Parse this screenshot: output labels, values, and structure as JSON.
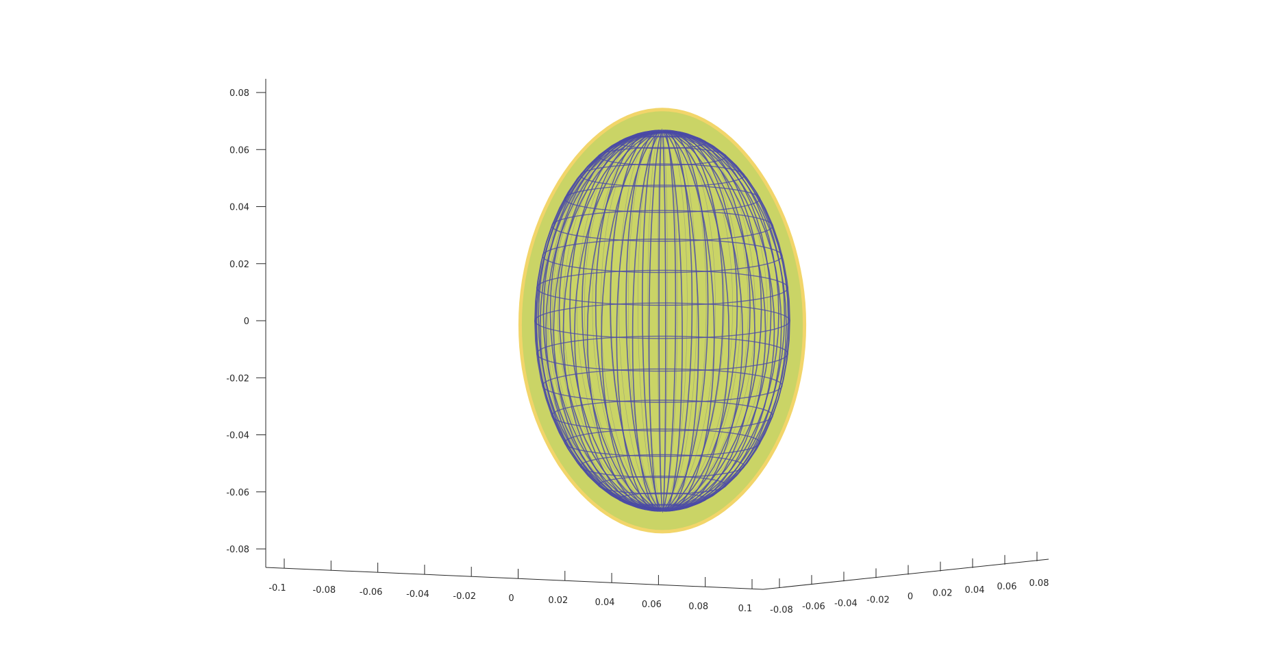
{
  "chart_data": {
    "type": "surface3d",
    "title": "",
    "xlabel": "",
    "ylabel": "",
    "zlabel": "",
    "grid": false,
    "legend": "none",
    "x_ticks": [
      "-0.1",
      "-0.08",
      "-0.06",
      "-0.04",
      "-0.02",
      "0",
      "0.02",
      "0.04",
      "0.06",
      "0.08",
      "0.1"
    ],
    "x_tick_values": [
      -0.1,
      -0.08,
      -0.06,
      -0.04,
      -0.02,
      0,
      0.02,
      0.04,
      0.06,
      0.08,
      0.1
    ],
    "y_ticks": [
      "-0.08",
      "-0.06",
      "-0.04",
      "-0.02",
      "0",
      "0.02",
      "0.04",
      "0.06",
      "0.08"
    ],
    "y_tick_values": [
      -0.08,
      -0.06,
      -0.04,
      -0.02,
      0,
      0.02,
      0.04,
      0.06,
      0.08
    ],
    "z_ticks": [
      "-0.08",
      "-0.06",
      "-0.04",
      "-0.02",
      "0",
      "0.02",
      "0.04",
      "0.06",
      "0.08"
    ],
    "z_tick_values": [
      -0.08,
      -0.06,
      -0.04,
      -0.02,
      0,
      0.02,
      0.04,
      0.06,
      0.08
    ],
    "xlim": [
      -0.1,
      0.1
    ],
    "ylim": [
      -0.08,
      0.08
    ],
    "zlim": [
      -0.08,
      0.08
    ],
    "surfaces": [
      {
        "role": "outer-ellipsoid",
        "center": [
          0,
          0,
          0
        ],
        "semi_axes": [
          0.058,
          0.058,
          0.074
        ],
        "face_color": "#c4cf55",
        "edge_color": "#f2d56a",
        "opacity": 0.9
      },
      {
        "role": "inner-wireframe",
        "center": [
          0,
          0,
          0
        ],
        "semi_axes": [
          0.052,
          0.052,
          0.067
        ],
        "line_color": "#4b4ba6",
        "meridians": 24,
        "parallels": 18
      }
    ],
    "colors": {
      "axis": "#262626",
      "outer_face": "#c4cf55",
      "outer_rim": "#f2d56a",
      "wire": "#4b4ba6"
    }
  }
}
